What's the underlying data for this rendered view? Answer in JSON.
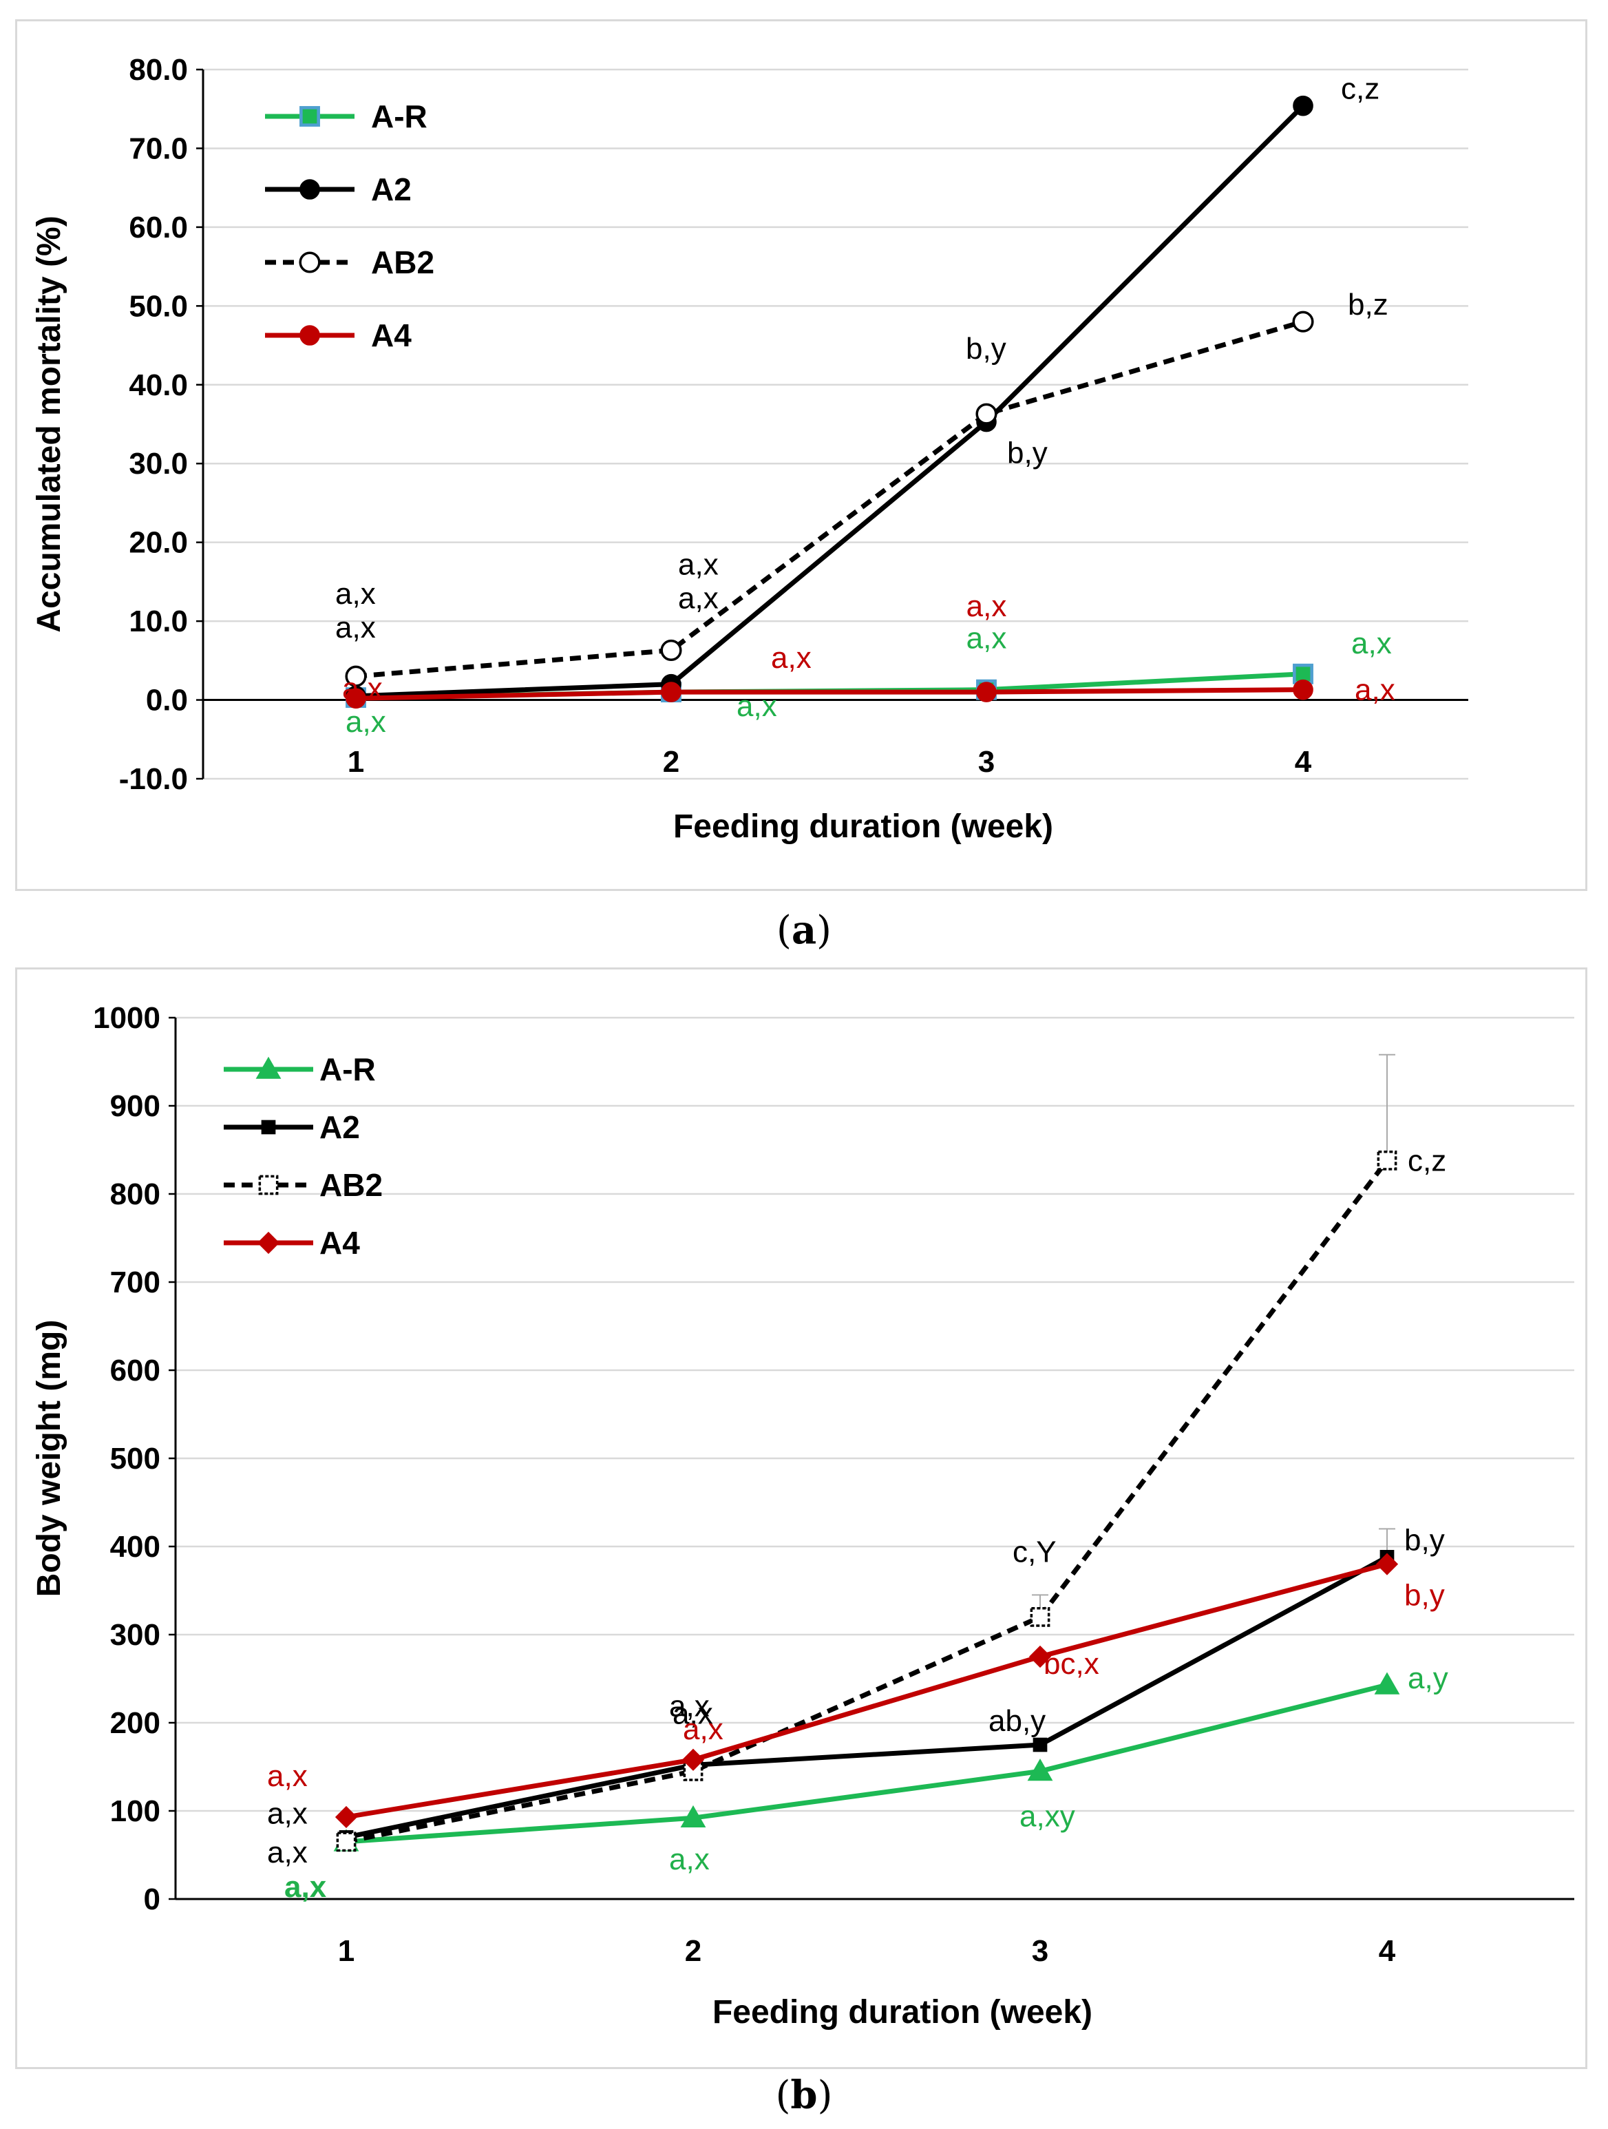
{
  "colors": {
    "A-R": "#1db954",
    "A2": "#000000",
    "AB2": "#000000",
    "A4": "#c00000",
    "A-R_marker_a_edge": "#4f9fd0",
    "grid": "#d9d9d9",
    "label_black": "#000000",
    "label_green": "#21b04b",
    "label_red": "#c00000",
    "errorbar": "#aaaaaa"
  },
  "chart_data": [
    {
      "id": "a",
      "type": "line",
      "caption": "a",
      "xlabel": "Feeding duration (week)",
      "ylabel": "Accumulated mortality (%)",
      "categories": [
        "1",
        "2",
        "3",
        "4"
      ],
      "ylim": [
        -10,
        80
      ],
      "yticks": [
        "-10.0",
        "0.0",
        "10.0",
        "20.0",
        "30.0",
        "40.0",
        "50.0",
        "60.0",
        "70.0",
        "80.0"
      ],
      "grid": true,
      "legend": "top-left",
      "series": [
        {
          "name": "A-R",
          "values": [
            0.3,
            1.0,
            1.3,
            3.3
          ],
          "marker": "square",
          "dash": false,
          "colorKey": "A-R",
          "labels": [
            "a,x",
            "a,x",
            "a,x",
            "a,x"
          ],
          "labelColor": "label_green"
        },
        {
          "name": "A2",
          "values": [
            0.5,
            2.0,
            35.3,
            75.4
          ],
          "marker": "circle-filled",
          "dash": false,
          "colorKey": "A2",
          "labels": [
            "a,x",
            "a,x",
            "b,y",
            "c,z"
          ],
          "labelColor": "label_black"
        },
        {
          "name": "AB2",
          "values": [
            3.0,
            6.3,
            36.3,
            48.0
          ],
          "marker": "circle-open",
          "dash": true,
          "colorKey": "AB2",
          "labels": [
            "a,x",
            "a,x",
            "b,y",
            "b,z"
          ],
          "labelColor": "label_black"
        },
        {
          "name": "A4",
          "values": [
            0.2,
            1.0,
            1.0,
            1.3
          ],
          "marker": "circle-filled",
          "dash": false,
          "colorKey": "A4",
          "labels": [
            "a,x",
            "a,x",
            "a,x",
            "a,x"
          ],
          "labelColor": "label_red"
        }
      ]
    },
    {
      "id": "b",
      "type": "line",
      "caption": "b",
      "xlabel": "Feeding duration (week)",
      "ylabel": "Body weight (mg)",
      "categories": [
        "1",
        "2",
        "3",
        "4"
      ],
      "ylim": [
        0,
        1000
      ],
      "yticks": [
        "0",
        "100",
        "200",
        "300",
        "400",
        "500",
        "600",
        "700",
        "800",
        "900",
        "1000"
      ],
      "grid": true,
      "legend": "top-left",
      "series": [
        {
          "name": "A-R",
          "values": [
            65,
            92,
            145,
            243
          ],
          "marker": "triangle",
          "dash": false,
          "colorKey": "A-R",
          "labels": [
            "a,x",
            "a,x",
            "a,xy",
            "a,y"
          ],
          "labelColor": "label_green"
        },
        {
          "name": "A2",
          "values": [
            70,
            152,
            175,
            388
          ],
          "marker": "square-filled",
          "dash": false,
          "colorKey": "A2",
          "labels": [
            "a,x",
            "a,x",
            "ab,y",
            "b,y"
          ],
          "labelColor": "label_black",
          "errorTop": [
            null,
            null,
            null,
            420
          ]
        },
        {
          "name": "AB2",
          "values": [
            65,
            145,
            320,
            838
          ],
          "marker": "square-open",
          "dash": true,
          "colorKey": "AB2",
          "labels": [
            "a,x",
            "a,x",
            "c,Y",
            "c,z"
          ],
          "labelColor": "label_black",
          "errorTop": [
            null,
            null,
            345,
            958
          ]
        },
        {
          "name": "A4",
          "values": [
            93,
            158,
            275,
            380
          ],
          "marker": "diamond",
          "dash": false,
          "colorKey": "A4",
          "labels": [
            "a,x",
            "a,x",
            "bc,x",
            "b,y"
          ],
          "labelColor": "label_red"
        }
      ]
    }
  ]
}
